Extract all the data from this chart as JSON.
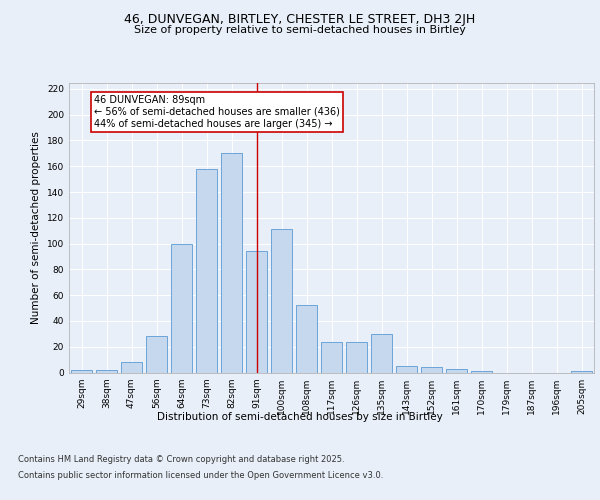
{
  "title": "46, DUNVEGAN, BIRTLEY, CHESTER LE STREET, DH3 2JH",
  "subtitle": "Size of property relative to semi-detached houses in Birtley",
  "xlabel": "Distribution of semi-detached houses by size in Birtley",
  "ylabel": "Number of semi-detached properties",
  "categories": [
    "29sqm",
    "38sqm",
    "47sqm",
    "56sqm",
    "64sqm",
    "73sqm",
    "82sqm",
    "91sqm",
    "100sqm",
    "108sqm",
    "117sqm",
    "126sqm",
    "135sqm",
    "143sqm",
    "152sqm",
    "161sqm",
    "170sqm",
    "179sqm",
    "187sqm",
    "196sqm",
    "205sqm"
  ],
  "values": [
    2,
    2,
    8,
    28,
    100,
    158,
    170,
    94,
    111,
    52,
    24,
    24,
    30,
    5,
    4,
    3,
    1,
    0,
    0,
    0,
    1
  ],
  "bar_color": "#c5d8ed",
  "bar_edge_color": "#5b9bd5",
  "vline_x": 7,
  "vline_color": "#cc0000",
  "annotation_text": "46 DUNVEGAN: 89sqm\n← 56% of semi-detached houses are smaller (436)\n44% of semi-detached houses are larger (345) →",
  "annotation_box_color": "#ffffff",
  "annotation_box_edge": "#cc0000",
  "ylim": [
    0,
    225
  ],
  "yticks": [
    0,
    20,
    40,
    60,
    80,
    100,
    120,
    140,
    160,
    180,
    200,
    220
  ],
  "background_color": "#e8eff8",
  "footer_line1": "Contains HM Land Registry data © Crown copyright and database right 2025.",
  "footer_line2": "Contains public sector information licensed under the Open Government Licence v3.0.",
  "title_fontsize": 9,
  "subtitle_fontsize": 8,
  "tick_fontsize": 6.5,
  "xlabel_fontsize": 7.5,
  "ylabel_fontsize": 7.5,
  "footer_fontsize": 6,
  "annotation_fontsize": 7
}
